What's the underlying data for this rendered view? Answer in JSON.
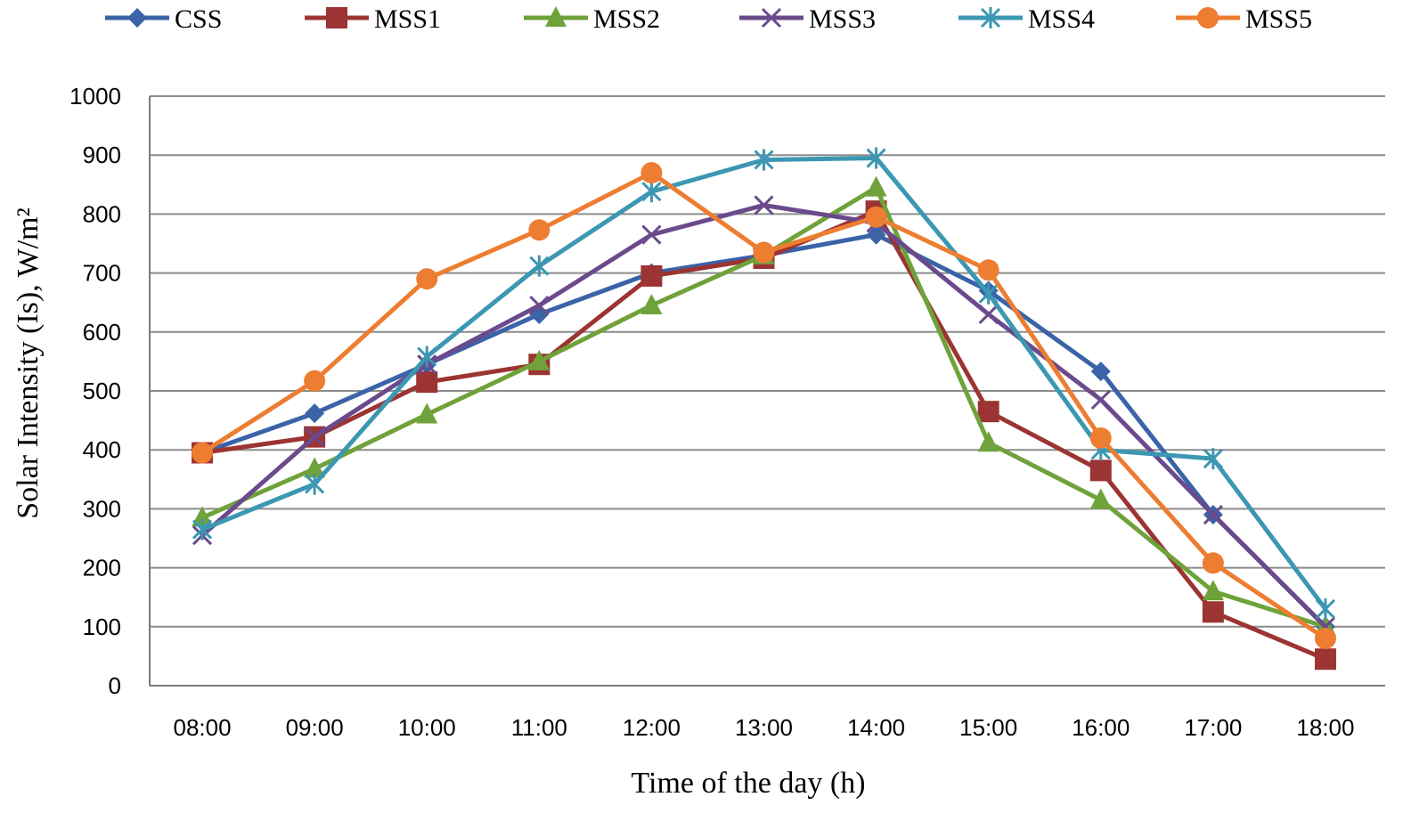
{
  "chart_data": {
    "type": "line",
    "title": "",
    "xlabel": "Time of the day (h)",
    "ylabel": "Solar Intensity (Is),  W/m²",
    "categories": [
      "08:00",
      "09:00",
      "10:00",
      "11:00",
      "12:00",
      "13:00",
      "14:00",
      "15:00",
      "16:00",
      "17:00",
      "18:00"
    ],
    "ylim": [
      0,
      1000
    ],
    "yticks": [
      "0",
      "100",
      "200",
      "300",
      "400",
      "500",
      "600",
      "700",
      "800",
      "900",
      "1000"
    ],
    "grid": "horizontal",
    "legend_position": "top",
    "series": [
      {
        "name": "CSS",
        "color": "#3a63a8",
        "marker": "diamond",
        "values": [
          395,
          462,
          545,
          630,
          700,
          730,
          765,
          670,
          533,
          290,
          100
        ]
      },
      {
        "name": "MSS1",
        "color": "#9b3432",
        "marker": "square",
        "values": [
          395,
          422,
          515,
          545,
          695,
          725,
          805,
          465,
          365,
          125,
          45
        ]
      },
      {
        "name": "MSS2",
        "color": "#6fa23a",
        "marker": "triangle",
        "values": [
          285,
          368,
          460,
          550,
          645,
          730,
          845,
          412,
          315,
          160,
          100
        ]
      },
      {
        "name": "MSS3",
        "color": "#6a4a8c",
        "marker": "x",
        "values": [
          255,
          422,
          545,
          645,
          765,
          815,
          785,
          630,
          485,
          290,
          100
        ]
      },
      {
        "name": "MSS4",
        "color": "#3c97b2",
        "marker": "star",
        "values": [
          265,
          342,
          558,
          712,
          838,
          892,
          895,
          665,
          400,
          385,
          130
        ]
      },
      {
        "name": "MSS5",
        "color": "#ed7d31",
        "marker": "circle",
        "values": [
          395,
          517,
          690,
          773,
          870,
          735,
          795,
          705,
          420,
          208,
          80
        ]
      }
    ]
  }
}
